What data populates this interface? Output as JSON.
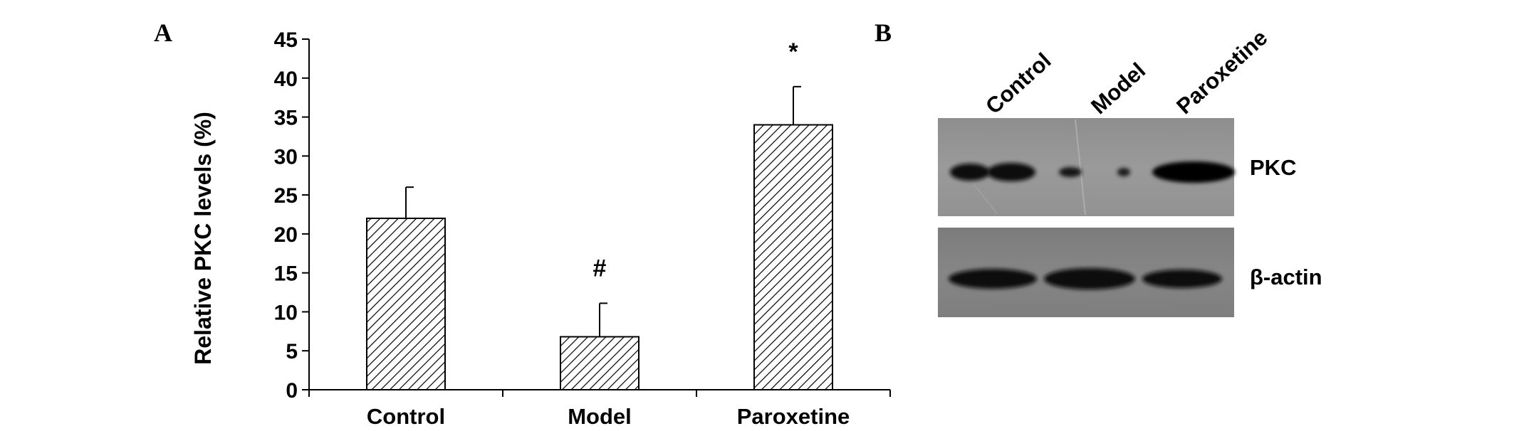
{
  "panel_a": {
    "letter": "A"
  },
  "panel_b": {
    "letter": "B"
  },
  "chart_data": {
    "type": "bar",
    "ylabel": "Relative PKC levels (%)",
    "ylim": [
      0,
      45
    ],
    "yticks": [
      0,
      5,
      10,
      15,
      20,
      25,
      30,
      35,
      40,
      45
    ],
    "categories": [
      "Control",
      "Model",
      "Paroxetine"
    ],
    "values": [
      22,
      6.8,
      34
    ],
    "errors": [
      4,
      4.3,
      4.9
    ],
    "annotations": [
      "",
      "#",
      "*"
    ],
    "fill_pattern": "diagonal-hatch",
    "grid": false
  },
  "western_blot": {
    "lanes": [
      "Control",
      "Model",
      "Paroxetine"
    ],
    "rows": [
      {
        "label": "PKC",
        "band_intensity": [
          0.85,
          0.3,
          1.0
        ]
      },
      {
        "label": "β-actin",
        "band_intensity": [
          0.9,
          0.95,
          0.9
        ]
      }
    ]
  }
}
